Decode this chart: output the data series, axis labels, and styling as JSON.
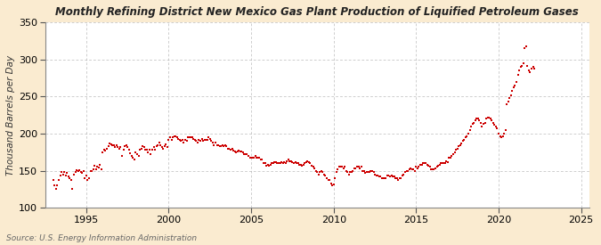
{
  "title": "Monthly Refining District New Mexico Gas Plant Production of Liquified Petroleum Gases",
  "ylabel": "Thousand Barrels per Day",
  "source": "Source: U.S. Energy Information Administration",
  "background_color": "#faebd0",
  "plot_bg_color": "#ffffff",
  "dot_color": "#cc0000",
  "grid_color": "#aaaaaa",
  "ylim": [
    100,
    350
  ],
  "yticks": [
    100,
    150,
    200,
    250,
    300,
    350
  ],
  "xlim_start": 1992.5,
  "xlim_end": 2025.5,
  "xticks": [
    1995,
    2000,
    2005,
    2010,
    2015,
    2020,
    2025
  ],
  "data": [
    [
      1993.0,
      137
    ],
    [
      1993.083,
      130
    ],
    [
      1993.167,
      126
    ],
    [
      1993.25,
      130
    ],
    [
      1993.333,
      138
    ],
    [
      1993.417,
      143
    ],
    [
      1993.5,
      148
    ],
    [
      1993.583,
      145
    ],
    [
      1993.667,
      148
    ],
    [
      1993.75,
      144
    ],
    [
      1993.833,
      147
    ],
    [
      1993.917,
      142
    ],
    [
      1994.0,
      140
    ],
    [
      1994.083,
      138
    ],
    [
      1994.167,
      125
    ],
    [
      1994.25,
      145
    ],
    [
      1994.333,
      148
    ],
    [
      1994.417,
      151
    ],
    [
      1994.5,
      149
    ],
    [
      1994.583,
      151
    ],
    [
      1994.667,
      148
    ],
    [
      1994.75,
      147
    ],
    [
      1994.833,
      150
    ],
    [
      1994.917,
      140
    ],
    [
      1995.0,
      143
    ],
    [
      1995.083,
      138
    ],
    [
      1995.167,
      140
    ],
    [
      1995.25,
      150
    ],
    [
      1995.333,
      150
    ],
    [
      1995.417,
      152
    ],
    [
      1995.5,
      157
    ],
    [
      1995.583,
      152
    ],
    [
      1995.667,
      155
    ],
    [
      1995.75,
      154
    ],
    [
      1995.833,
      158
    ],
    [
      1995.917,
      152
    ],
    [
      1996.0,
      175
    ],
    [
      1996.083,
      179
    ],
    [
      1996.167,
      177
    ],
    [
      1996.25,
      180
    ],
    [
      1996.333,
      183
    ],
    [
      1996.417,
      187
    ],
    [
      1996.5,
      186
    ],
    [
      1996.583,
      184
    ],
    [
      1996.667,
      185
    ],
    [
      1996.75,
      182
    ],
    [
      1996.833,
      185
    ],
    [
      1996.917,
      182
    ],
    [
      1997.0,
      180
    ],
    [
      1997.083,
      182
    ],
    [
      1997.167,
      170
    ],
    [
      1997.25,
      178
    ],
    [
      1997.333,
      183
    ],
    [
      1997.417,
      185
    ],
    [
      1997.5,
      182
    ],
    [
      1997.583,
      178
    ],
    [
      1997.667,
      174
    ],
    [
      1997.75,
      170
    ],
    [
      1997.833,
      168
    ],
    [
      1997.917,
      165
    ],
    [
      1998.0,
      175
    ],
    [
      1998.083,
      173
    ],
    [
      1998.167,
      170
    ],
    [
      1998.25,
      178
    ],
    [
      1998.333,
      180
    ],
    [
      1998.417,
      183
    ],
    [
      1998.5,
      182
    ],
    [
      1998.583,
      178
    ],
    [
      1998.667,
      178
    ],
    [
      1998.75,
      175
    ],
    [
      1998.833,
      178
    ],
    [
      1998.917,
      172
    ],
    [
      1999.0,
      178
    ],
    [
      1999.083,
      182
    ],
    [
      1999.167,
      178
    ],
    [
      1999.25,
      183
    ],
    [
      1999.333,
      185
    ],
    [
      1999.417,
      188
    ],
    [
      1999.5,
      185
    ],
    [
      1999.583,
      182
    ],
    [
      1999.667,
      180
    ],
    [
      1999.75,
      183
    ],
    [
      1999.833,
      186
    ],
    [
      1999.917,
      182
    ],
    [
      2000.0,
      192
    ],
    [
      2000.083,
      195
    ],
    [
      2000.167,
      192
    ],
    [
      2000.25,
      195
    ],
    [
      2000.333,
      196
    ],
    [
      2000.417,
      197
    ],
    [
      2000.5,
      195
    ],
    [
      2000.583,
      193
    ],
    [
      2000.667,
      192
    ],
    [
      2000.75,
      190
    ],
    [
      2000.833,
      192
    ],
    [
      2000.917,
      188
    ],
    [
      2001.0,
      192
    ],
    [
      2001.083,
      190
    ],
    [
      2001.167,
      195
    ],
    [
      2001.25,
      195
    ],
    [
      2001.333,
      195
    ],
    [
      2001.417,
      195
    ],
    [
      2001.5,
      193
    ],
    [
      2001.583,
      192
    ],
    [
      2001.667,
      190
    ],
    [
      2001.75,
      188
    ],
    [
      2001.833,
      192
    ],
    [
      2001.917,
      190
    ],
    [
      2002.0,
      193
    ],
    [
      2002.083,
      190
    ],
    [
      2002.167,
      192
    ],
    [
      2002.25,
      192
    ],
    [
      2002.333,
      192
    ],
    [
      2002.417,
      195
    ],
    [
      2002.5,
      193
    ],
    [
      2002.583,
      190
    ],
    [
      2002.667,
      188
    ],
    [
      2002.75,
      185
    ],
    [
      2002.833,
      188
    ],
    [
      2002.917,
      185
    ],
    [
      2003.0,
      185
    ],
    [
      2003.083,
      183
    ],
    [
      2003.167,
      183
    ],
    [
      2003.25,
      185
    ],
    [
      2003.333,
      183
    ],
    [
      2003.417,
      185
    ],
    [
      2003.5,
      183
    ],
    [
      2003.583,
      180
    ],
    [
      2003.667,
      180
    ],
    [
      2003.75,
      178
    ],
    [
      2003.833,
      180
    ],
    [
      2003.917,
      177
    ],
    [
      2004.0,
      176
    ],
    [
      2004.083,
      175
    ],
    [
      2004.167,
      176
    ],
    [
      2004.25,
      177
    ],
    [
      2004.333,
      176
    ],
    [
      2004.417,
      176
    ],
    [
      2004.5,
      175
    ],
    [
      2004.583,
      173
    ],
    [
      2004.667,
      172
    ],
    [
      2004.75,
      172
    ],
    [
      2004.833,
      170
    ],
    [
      2004.917,
      168
    ],
    [
      2005.0,
      167
    ],
    [
      2005.083,
      167
    ],
    [
      2005.167,
      168
    ],
    [
      2005.25,
      170
    ],
    [
      2005.333,
      168
    ],
    [
      2005.417,
      167
    ],
    [
      2005.5,
      167
    ],
    [
      2005.583,
      165
    ],
    [
      2005.667,
      165
    ],
    [
      2005.75,
      160
    ],
    [
      2005.833,
      160
    ],
    [
      2005.917,
      157
    ],
    [
      2006.0,
      158
    ],
    [
      2006.083,
      157
    ],
    [
      2006.167,
      158
    ],
    [
      2006.25,
      160
    ],
    [
      2006.333,
      160
    ],
    [
      2006.417,
      162
    ],
    [
      2006.5,
      162
    ],
    [
      2006.583,
      160
    ],
    [
      2006.667,
      160
    ],
    [
      2006.75,
      160
    ],
    [
      2006.833,
      162
    ],
    [
      2006.917,
      160
    ],
    [
      2007.0,
      162
    ],
    [
      2007.083,
      160
    ],
    [
      2007.167,
      163
    ],
    [
      2007.25,
      165
    ],
    [
      2007.333,
      163
    ],
    [
      2007.417,
      163
    ],
    [
      2007.5,
      162
    ],
    [
      2007.583,
      160
    ],
    [
      2007.667,
      162
    ],
    [
      2007.75,
      160
    ],
    [
      2007.833,
      160
    ],
    [
      2007.917,
      158
    ],
    [
      2008.0,
      158
    ],
    [
      2008.083,
      157
    ],
    [
      2008.167,
      158
    ],
    [
      2008.25,
      160
    ],
    [
      2008.333,
      162
    ],
    [
      2008.417,
      163
    ],
    [
      2008.5,
      162
    ],
    [
      2008.583,
      160
    ],
    [
      2008.667,
      157
    ],
    [
      2008.75,
      155
    ],
    [
      2008.833,
      153
    ],
    [
      2008.917,
      150
    ],
    [
      2009.0,
      148
    ],
    [
      2009.083,
      145
    ],
    [
      2009.167,
      148
    ],
    [
      2009.25,
      150
    ],
    [
      2009.333,
      148
    ],
    [
      2009.417,
      145
    ],
    [
      2009.5,
      143
    ],
    [
      2009.583,
      140
    ],
    [
      2009.667,
      138
    ],
    [
      2009.75,
      137
    ],
    [
      2009.833,
      133
    ],
    [
      2009.917,
      130
    ],
    [
      2010.0,
      132
    ],
    [
      2010.083,
      140
    ],
    [
      2010.167,
      148
    ],
    [
      2010.25,
      152
    ],
    [
      2010.333,
      155
    ],
    [
      2010.417,
      155
    ],
    [
      2010.5,
      155
    ],
    [
      2010.583,
      153
    ],
    [
      2010.667,
      155
    ],
    [
      2010.75,
      150
    ],
    [
      2010.833,
      148
    ],
    [
      2010.917,
      145
    ],
    [
      2011.0,
      148
    ],
    [
      2011.083,
      148
    ],
    [
      2011.167,
      150
    ],
    [
      2011.25,
      153
    ],
    [
      2011.333,
      153
    ],
    [
      2011.417,
      155
    ],
    [
      2011.5,
      155
    ],
    [
      2011.583,
      153
    ],
    [
      2011.667,
      155
    ],
    [
      2011.75,
      150
    ],
    [
      2011.833,
      150
    ],
    [
      2011.917,
      147
    ],
    [
      2012.0,
      148
    ],
    [
      2012.083,
      148
    ],
    [
      2012.167,
      148
    ],
    [
      2012.25,
      150
    ],
    [
      2012.333,
      150
    ],
    [
      2012.417,
      148
    ],
    [
      2012.5,
      145
    ],
    [
      2012.583,
      143
    ],
    [
      2012.667,
      143
    ],
    [
      2012.75,
      142
    ],
    [
      2012.833,
      142
    ],
    [
      2012.917,
      140
    ],
    [
      2013.0,
      140
    ],
    [
      2013.083,
      140
    ],
    [
      2013.167,
      140
    ],
    [
      2013.25,
      143
    ],
    [
      2013.333,
      143
    ],
    [
      2013.417,
      142
    ],
    [
      2013.5,
      143
    ],
    [
      2013.583,
      142
    ],
    [
      2013.667,
      142
    ],
    [
      2013.75,
      140
    ],
    [
      2013.833,
      140
    ],
    [
      2013.917,
      138
    ],
    [
      2014.0,
      140
    ],
    [
      2014.083,
      140
    ],
    [
      2014.167,
      143
    ],
    [
      2014.25,
      145
    ],
    [
      2014.333,
      148
    ],
    [
      2014.417,
      150
    ],
    [
      2014.5,
      150
    ],
    [
      2014.583,
      152
    ],
    [
      2014.667,
      153
    ],
    [
      2014.75,
      152
    ],
    [
      2014.833,
      152
    ],
    [
      2014.917,
      150
    ],
    [
      2015.0,
      155
    ],
    [
      2015.083,
      153
    ],
    [
      2015.167,
      155
    ],
    [
      2015.25,
      158
    ],
    [
      2015.333,
      158
    ],
    [
      2015.417,
      160
    ],
    [
      2015.5,
      160
    ],
    [
      2015.583,
      160
    ],
    [
      2015.667,
      158
    ],
    [
      2015.75,
      157
    ],
    [
      2015.833,
      155
    ],
    [
      2015.917,
      152
    ],
    [
      2016.0,
      152
    ],
    [
      2016.083,
      152
    ],
    [
      2016.167,
      153
    ],
    [
      2016.25,
      155
    ],
    [
      2016.333,
      157
    ],
    [
      2016.417,
      158
    ],
    [
      2016.5,
      160
    ],
    [
      2016.583,
      160
    ],
    [
      2016.667,
      160
    ],
    [
      2016.75,
      160
    ],
    [
      2016.833,
      163
    ],
    [
      2016.917,
      162
    ],
    [
      2017.0,
      168
    ],
    [
      2017.083,
      168
    ],
    [
      2017.167,
      170
    ],
    [
      2017.25,
      172
    ],
    [
      2017.333,
      175
    ],
    [
      2017.417,
      178
    ],
    [
      2017.5,
      180
    ],
    [
      2017.583,
      183
    ],
    [
      2017.667,
      185
    ],
    [
      2017.75,
      187
    ],
    [
      2017.833,
      190
    ],
    [
      2017.917,
      192
    ],
    [
      2018.0,
      195
    ],
    [
      2018.083,
      197
    ],
    [
      2018.167,
      200
    ],
    [
      2018.25,
      205
    ],
    [
      2018.333,
      210
    ],
    [
      2018.417,
      213
    ],
    [
      2018.5,
      215
    ],
    [
      2018.583,
      218
    ],
    [
      2018.667,
      220
    ],
    [
      2018.75,
      220
    ],
    [
      2018.833,
      218
    ],
    [
      2018.917,
      215
    ],
    [
      2019.0,
      210
    ],
    [
      2019.083,
      213
    ],
    [
      2019.167,
      215
    ],
    [
      2019.25,
      220
    ],
    [
      2019.333,
      222
    ],
    [
      2019.417,
      222
    ],
    [
      2019.5,
      220
    ],
    [
      2019.583,
      218
    ],
    [
      2019.667,
      215
    ],
    [
      2019.75,
      212
    ],
    [
      2019.833,
      210
    ],
    [
      2019.917,
      207
    ],
    [
      2020.0,
      200
    ],
    [
      2020.083,
      197
    ],
    [
      2020.167,
      195
    ],
    [
      2020.25,
      197
    ],
    [
      2020.333,
      200
    ],
    [
      2020.417,
      205
    ],
    [
      2020.5,
      240
    ],
    [
      2020.583,
      243
    ],
    [
      2020.667,
      248
    ],
    [
      2020.75,
      252
    ],
    [
      2020.833,
      258
    ],
    [
      2020.917,
      262
    ],
    [
      2021.0,
      265
    ],
    [
      2021.083,
      270
    ],
    [
      2021.167,
      280
    ],
    [
      2021.25,
      285
    ],
    [
      2021.333,
      290
    ],
    [
      2021.417,
      292
    ],
    [
      2021.5,
      295
    ],
    [
      2021.583,
      315
    ],
    [
      2021.667,
      318
    ],
    [
      2021.75,
      292
    ],
    [
      2021.833,
      285
    ],
    [
      2021.917,
      283
    ],
    [
      2022.0,
      288
    ],
    [
      2022.083,
      290
    ],
    [
      2022.167,
      288
    ]
  ]
}
